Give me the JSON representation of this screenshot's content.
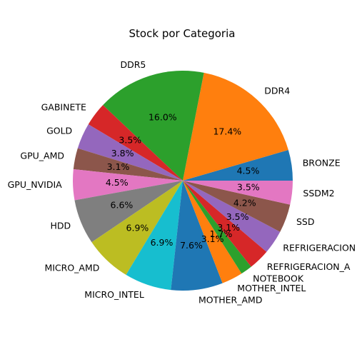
{
  "chart_data": {
    "type": "pie",
    "title": "Stock por Categoria",
    "categories": [
      "BRONZE",
      "DDR4",
      "DDR5",
      "GABINETE",
      "GOLD",
      "GPU_AMD",
      "GPU_NVIDIA",
      "HDD",
      "MICRO_AMD",
      "MICRO_INTEL",
      "MOTHER_AMD",
      "MOTHER_INTEL",
      "NOTEBOOK",
      "REFRIGERACION_A",
      "REFRIGERACION",
      "SSD",
      "SSDM2"
    ],
    "values": [
      4.5,
      17.4,
      16.0,
      3.5,
      3.8,
      3.1,
      4.5,
      6.6,
      6.9,
      6.9,
      7.6,
      3.1,
      1.7,
      3.1,
      3.5,
      4.2,
      3.5
    ],
    "labels_pct": [
      "4.5%",
      "17.4%",
      "16.0%",
      "3.5%",
      "3.8%",
      "3.1%",
      "4.5%",
      "6.6%",
      "6.9%",
      "6.9%",
      "7.6%",
      "3.1%",
      "1.7%",
      "3.1%",
      "3.5%",
      "4.2%",
      "3.5%"
    ],
    "colors": [
      "#1f77b4",
      "#ff7f0e",
      "#2ca02c",
      "#d62728",
      "#9467bd",
      "#8c564b",
      "#e377c2",
      "#7f7f7f",
      "#bcbd22",
      "#17becf",
      "#1f77b4",
      "#ff7f0e",
      "#2ca02c",
      "#d62728",
      "#9467bd",
      "#8c564b",
      "#e377c2"
    ],
    "start_angle_deg": 0,
    "direction": "counterclockwise",
    "legend": "none"
  }
}
